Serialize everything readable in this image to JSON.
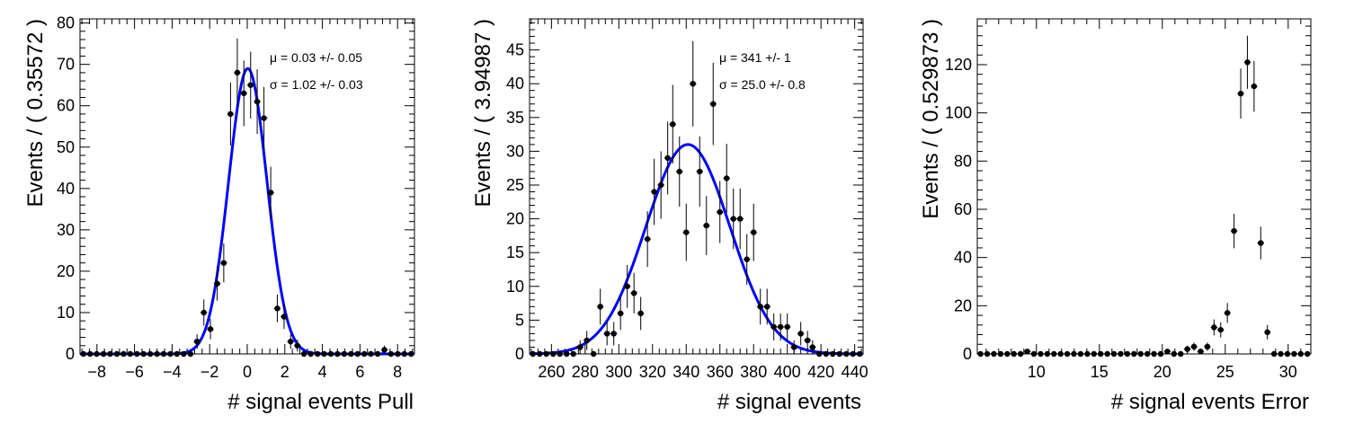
{
  "chart_data": [
    {
      "type": "scatter",
      "xlabel": "# signal events Pull",
      "ylabel": "Events / ( 0.35572 )",
      "xlim": [
        -8.9,
        8.9
      ],
      "ylim": [
        0,
        81
      ],
      "xticks": [
        -8,
        -6,
        -4,
        -2,
        0,
        2,
        4,
        6,
        8
      ],
      "yticks": [
        0,
        10,
        20,
        30,
        40,
        50,
        60,
        70,
        80
      ],
      "xtick_labels": [
        "−8",
        "−6",
        "−4",
        "−2",
        "0",
        "2",
        "4",
        "6",
        "8"
      ],
      "ytick_labels": [
        "0",
        "10",
        "20",
        "30",
        "40",
        "50",
        "60",
        "70",
        "80"
      ],
      "annotations": [
        "μ =  0.03 +/- 0.05",
        "σ =  1.02 +/- 0.03"
      ],
      "fit": {
        "mean": 0.03,
        "sigma": 1.02,
        "norm": 69
      },
      "series": [
        {
          "x": [
            -8.72,
            -8.36,
            -8.01,
            -7.65,
            -7.3,
            -6.94,
            -6.58,
            -6.23,
            -5.87,
            -5.52,
            -5.16,
            -4.8,
            -4.45,
            -4.09,
            -3.74,
            -3.38,
            -3.02,
            -2.67,
            -2.31,
            -1.96,
            -1.6,
            -1.25,
            -0.89,
            -0.53,
            -0.18,
            0.18,
            0.53,
            0.89,
            1.25,
            1.6,
            1.96,
            2.31,
            2.67,
            3.02,
            3.38,
            3.74,
            4.09,
            4.45,
            4.8,
            5.16,
            5.52,
            5.87,
            6.23,
            6.58,
            6.94,
            7.3,
            7.65,
            8.01,
            8.36,
            8.72
          ],
          "y": [
            0,
            0,
            0,
            0,
            0,
            0,
            0,
            0,
            0,
            0,
            0,
            0,
            0,
            0,
            0,
            0,
            0,
            3,
            10,
            6,
            17,
            22,
            58,
            68,
            63,
            65,
            61,
            57,
            39,
            11,
            9,
            3,
            2,
            0,
            0,
            0,
            0,
            0,
            0,
            0,
            0,
            0,
            0,
            0,
            0,
            1,
            0,
            0,
            0,
            0
          ]
        }
      ]
    },
    {
      "type": "scatter",
      "xlabel": "# signal events",
      "ylabel": "Events / ( 3.94987 )",
      "xlim": [
        247,
        445
      ],
      "ylim": [
        0,
        49.6
      ],
      "xticks": [
        260,
        280,
        300,
        320,
        340,
        360,
        380,
        400,
        420,
        440
      ],
      "yticks": [
        0,
        5,
        10,
        15,
        20,
        25,
        30,
        35,
        40,
        45
      ],
      "xtick_labels": [
        "260",
        "280",
        "300",
        "320",
        "340",
        "360",
        "380",
        "400",
        "420",
        "440"
      ],
      "ytick_labels": [
        "0",
        "5",
        "10",
        "15",
        "20",
        "25",
        "30",
        "35",
        "40",
        "45"
      ],
      "annotations": [
        "μ =  341 +/- 1",
        "σ =  25.0 +/- 0.8"
      ],
      "fit": {
        "mean": 341,
        "sigma": 25.0,
        "norm": 31
      },
      "series": [
        {
          "x": [
            249,
            253,
            257,
            261,
            265,
            269,
            273,
            277,
            281,
            285,
            289,
            293,
            297,
            301,
            305,
            309,
            313,
            317,
            321,
            325,
            329,
            332,
            336,
            340,
            344,
            348,
            352,
            356,
            360,
            364,
            368,
            372,
            376,
            380,
            384,
            388,
            392,
            396,
            400,
            404,
            408,
            412,
            415,
            419,
            423,
            427,
            431,
            435,
            439,
            443
          ],
          "y": [
            0,
            0,
            0,
            0,
            0,
            0,
            0,
            1,
            2,
            0,
            7,
            3,
            3,
            6,
            10,
            9,
            6,
            17,
            24,
            25,
            29,
            34,
            27,
            18,
            40,
            27,
            19,
            37,
            21,
            26,
            20,
            20,
            14,
            18,
            7,
            7,
            4,
            4,
            4,
            1,
            3,
            2,
            1,
            0,
            0,
            0,
            0,
            0,
            0,
            0
          ]
        }
      ]
    },
    {
      "type": "scatter",
      "xlabel": "# signal events Error",
      "ylabel": "Events / ( 0.529873 )",
      "xlim": [
        5.3,
        31.8
      ],
      "ylim": [
        0,
        139
      ],
      "xticks": [
        10,
        15,
        20,
        25,
        30
      ],
      "yticks": [
        0,
        20,
        40,
        60,
        80,
        100,
        120
      ],
      "xtick_labels": [
        "10",
        "15",
        "20",
        "25",
        "30"
      ],
      "ytick_labels": [
        "0",
        "20",
        "40",
        "60",
        "80",
        "100",
        "120"
      ],
      "annotations": [],
      "series": [
        {
          "x": [
            5.56,
            6.09,
            6.62,
            7.15,
            7.68,
            8.21,
            8.74,
            9.27,
            9.8,
            10.33,
            10.86,
            11.39,
            11.92,
            12.45,
            12.98,
            13.51,
            14.04,
            14.57,
            15.1,
            15.63,
            16.16,
            16.69,
            17.22,
            17.75,
            18.28,
            18.81,
            19.34,
            19.87,
            20.4,
            20.93,
            21.46,
            21.99,
            22.52,
            23.05,
            23.58,
            24.11,
            24.64,
            25.17,
            25.7,
            26.23,
            26.76,
            27.29,
            27.82,
            28.35,
            28.88,
            29.41,
            29.94,
            30.47,
            31.0,
            31.53
          ],
          "y": [
            0,
            0,
            0,
            0,
            0,
            0,
            0,
            1,
            0,
            0,
            0,
            0,
            0,
            0,
            0,
            0,
            0,
            0,
            0,
            0,
            0,
            0,
            0,
            0,
            0,
            0,
            0,
            0,
            1,
            0,
            0,
            2,
            3,
            1,
            3,
            11,
            10,
            17,
            51,
            108,
            121,
            111,
            46,
            9,
            0,
            0,
            0,
            0,
            0,
            0
          ]
        }
      ]
    }
  ]
}
